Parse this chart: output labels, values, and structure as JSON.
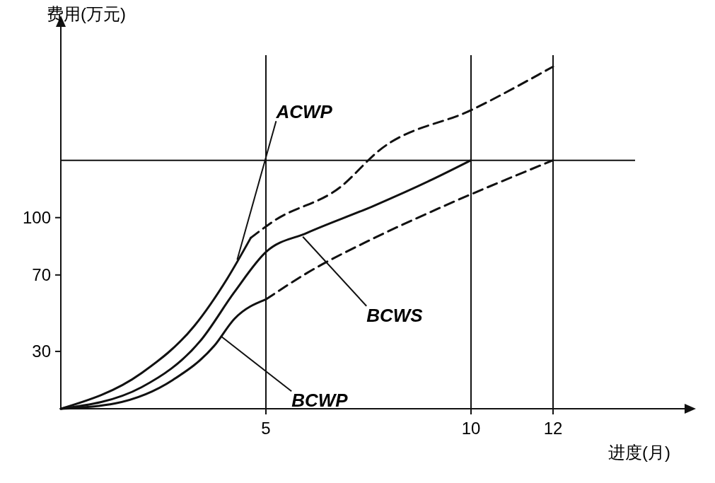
{
  "chart_data": {
    "type": "line",
    "xlabel": "进度(月)",
    "ylabel": "费用(万元)",
    "xlim": [
      0,
      14
    ],
    "ylim": [
      0,
      185
    ],
    "xticks": [
      5,
      10,
      12
    ],
    "yticks": [
      30,
      70,
      100
    ],
    "grid": false,
    "series": [
      {
        "color": "#111111",
        "line_style": "solid",
        "x": [
          0,
          1.97,
          3.26,
          4.06,
          4.63
        ],
        "values": [
          0,
          18.7,
          43.5,
          68.2,
          89.4
        ]
      },
      {
        "color": "#111111",
        "line_style": "dashed",
        "x": [
          4.63,
          5.19,
          6.81,
          7.77,
          10.03,
          12
        ],
        "values": [
          89.4,
          98.2,
          115.9,
          135.3,
          156.5,
          179
        ]
      },
      {
        "color": "#111111",
        "line_style": "solid",
        "x": [
          0,
          1.97,
          3.42,
          4.23,
          5,
          6,
          7.61,
          9.06,
          10
        ],
        "values": [
          0,
          11.3,
          36,
          61,
          82,
          92,
          106,
          120,
          130
        ]
      },
      {
        "color": "#111111",
        "line_style": "solid",
        "x": [
          0,
          1.32,
          2.74,
          3.74,
          4.23,
          5
        ],
        "values": [
          0,
          2.8,
          15.2,
          32.9,
          47,
          57.2
        ]
      },
      {
        "color": "#111111",
        "line_style": "dashed",
        "x": [
          5,
          6,
          7.61,
          9.23,
          12
        ],
        "values": [
          57.2,
          71,
          89,
          105,
          130
        ]
      }
    ],
    "ref_lines": [
      {
        "axis": "y",
        "value": 130,
        "color": "#111111"
      },
      {
        "axis": "x",
        "value": 5,
        "color": "#111111"
      },
      {
        "axis": "x",
        "value": 10,
        "color": "#111111"
      },
      {
        "axis": "x",
        "value": 12,
        "color": "#111111"
      }
    ],
    "annotations": [
      {
        "text": "ACWP",
        "x": 4.3,
        "y": 78
      },
      {
        "text": "BCWS",
        "x": 5.9,
        "y": 90
      },
      {
        "text": "BCWP",
        "x": 3.9,
        "y": 38
      }
    ]
  }
}
